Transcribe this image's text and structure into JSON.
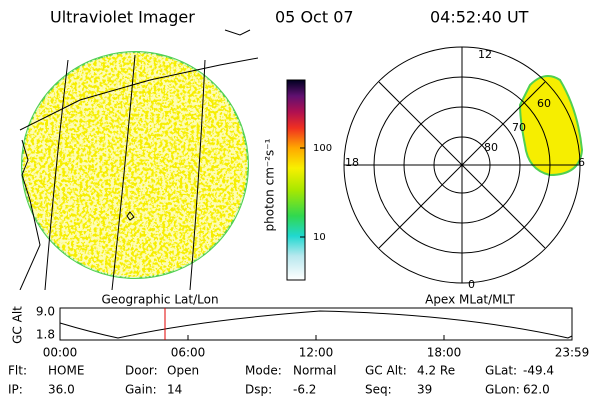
{
  "header": {
    "instrument": "Ultraviolet Imager",
    "date": "05 Oct 07",
    "time": "04:52:40 UT"
  },
  "colorbar": {
    "label": "photon cm⁻²s⁻¹",
    "ticks": [
      "100",
      "10"
    ]
  },
  "polar": {
    "mlt_labels": [
      "12",
      "18",
      "6",
      "0"
    ],
    "lat_labels": [
      "80",
      "70",
      "60"
    ]
  },
  "panels": {
    "left": "Geographic Lat/Lon",
    "right": "Apex MLat/MLT"
  },
  "orbit": {
    "ylabel": "GC Alt",
    "yticks": [
      "9.0",
      "1.8"
    ],
    "xticks": [
      "00:00",
      "06:00",
      "12:00",
      "18:00",
      "23:59"
    ]
  },
  "footer": [
    [
      {
        "label": "Flt:",
        "value": "HOME"
      },
      {
        "label": "Door:",
        "value": "Open"
      },
      {
        "label": "Mode:",
        "value": "Normal"
      },
      {
        "label": "GC Alt:",
        "value": "4.2 Re"
      },
      {
        "label": "GLat:",
        "value": "-49.4"
      }
    ],
    [
      {
        "label": "IP:",
        "value": "36.0"
      },
      {
        "label": "Gain:",
        "value": "14"
      },
      {
        "label": "Dsp:",
        "value": "-6.2"
      },
      {
        "label": "Seq:",
        "value": "39"
      },
      {
        "label": "GLon:",
        "value": "62.0"
      }
    ]
  ]
}
